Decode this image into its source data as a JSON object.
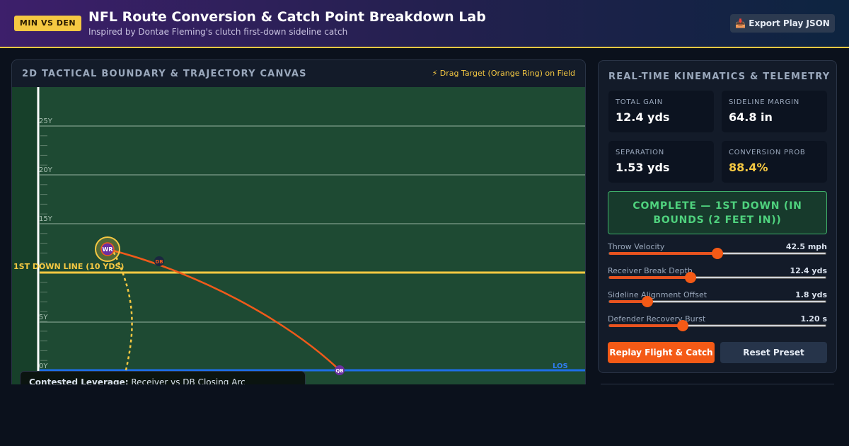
{
  "header": {
    "badge": "MIN VS DEN",
    "title": "NFL Route Conversion & Catch Point Breakdown Lab",
    "subtitle": "Inspired by Dontae Fleming's clutch first-down sideline catch",
    "export_button": "📥 Export Play JSON"
  },
  "canvas_panel": {
    "title": "2D TACTICAL BOUNDARY & TRAJECTORY CANVAS",
    "hint": "⚡ Drag Target (Orange Ring) on Field",
    "yard_labels": [
      "25Y",
      "20Y",
      "15Y",
      "5Y",
      "0Y"
    ],
    "first_down_label": "1ST DOWN LINE (10 YDS)",
    "los_label": "LOS",
    "players": [
      "WR",
      "DB",
      "QB"
    ],
    "tooltip": {
      "heading": "Contested Leverage:",
      "text": "Receiver vs DB Closing Arc"
    }
  },
  "telemetry": {
    "title": "REAL-TIME KINEMATICS & TELEMETRY",
    "stats": [
      {
        "label": "TOTAL GAIN",
        "value": "12.4 yds"
      },
      {
        "label": "SIDELINE MARGIN",
        "value": "64.8 in"
      },
      {
        "label": "SEPARATION",
        "value": "1.53 yds"
      },
      {
        "label": "CONVERSION PROB",
        "value": "88.4%"
      }
    ],
    "status": "COMPLETE — 1ST DOWN (IN BOUNDS (2 FEET IN))",
    "sliders": [
      {
        "label": "Throw Velocity",
        "value": "42.5 mph"
      },
      {
        "label": "Receiver Break Depth",
        "value": "12.4 yds"
      },
      {
        "label": "Sideline Alignment Offset",
        "value": "1.8 yds"
      },
      {
        "label": "Defender Recovery Burst",
        "value": "1.20 s"
      }
    ],
    "buttons": [
      "Replay Flight & Catch",
      "Reset Preset"
    ]
  }
}
